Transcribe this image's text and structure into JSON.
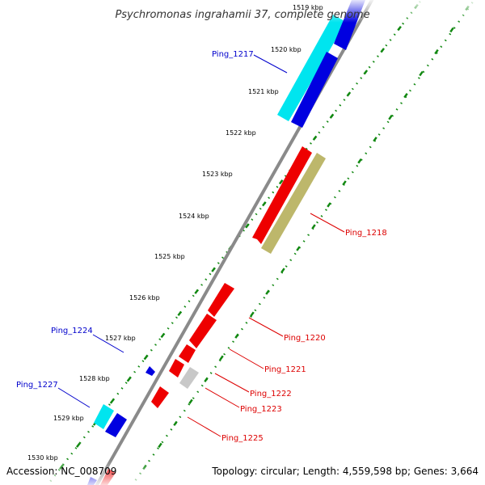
{
  "title": "Psychromonas ingrahamii 37, complete genome",
  "accession": "Accession: NC_008709",
  "topology": "Topology: circular; Length: 4,559,598 bp; Genes: 3,664",
  "colors": {
    "backbone": "#8a8a8a",
    "cyan": "#00e5ef",
    "blue": "#0000e0",
    "red": "#ee0000",
    "olive": "#bdb76b",
    "grey": "#c8c8c8",
    "forward_label": "#0000cc",
    "reverse_label": "#dd0000",
    "dots": "#118811"
  },
  "ticks": [
    "1519 kbp",
    "1520 kbp",
    "1521 kbp",
    "1522 kbp",
    "1523 kbp",
    "1524 kbp",
    "1525 kbp",
    "1526 kbp",
    "1527 kbp",
    "1528 kbp",
    "1529 kbp",
    "1530 kbp"
  ],
  "labels": {
    "ping_1217": "Ping_1217",
    "ping_1218": "Ping_1218",
    "ping_1220": "Ping_1220",
    "ping_1221": "Ping_1221",
    "ping_1222": "Ping_1222",
    "ping_1223": "Ping_1223",
    "ping_1224": "Ping_1224",
    "ping_1225": "Ping_1225",
    "ping_1227": "Ping_1227"
  }
}
